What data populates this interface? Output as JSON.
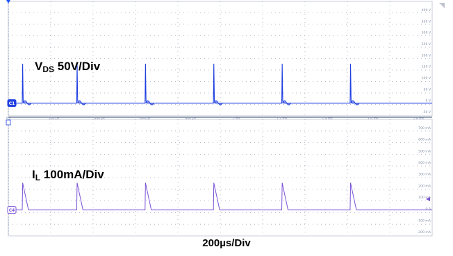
{
  "colors": {
    "ch1": "#1f3fe0",
    "ch4": "#7a52d6",
    "grid": "#a0a8b8",
    "divider": "#5a6b8c",
    "tick_text": "#8090a8",
    "marker_fill": "#2255ff"
  },
  "chart_data": [
    {
      "type": "line",
      "name": "drain-source-voltage",
      "label_main": "V",
      "label_sub": "DS",
      "label_rest": " 50V/Div",
      "channel_badge": "C1",
      "yticks": [
        "400 V",
        "350 V",
        "300 V",
        "250 V",
        "200 V",
        "150 V",
        "100 V",
        "50 V",
        "0 V",
        "-50 V"
      ],
      "ylim": [
        -50,
        400
      ],
      "ylim_unit": "V",
      "x": [
        0,
        200,
        400,
        600,
        800,
        1000,
        1200,
        1400,
        1600,
        1800
      ],
      "xticks": [
        "0 s",
        "200 µs",
        "400 µs",
        "600 µs",
        "800 µs",
        "1 ms",
        "1.2 ms",
        "1.4 ms",
        "1.6 ms",
        "1.8 ms"
      ],
      "xlim_us": [
        0,
        1860
      ],
      "baseline": 0,
      "pulse_times_us": [
        0,
        300,
        600,
        900,
        1200,
        1500
      ],
      "pulse_peak": 155
    },
    {
      "type": "line",
      "name": "inductor-current",
      "label_main": "I",
      "label_sub": "L",
      "label_rest": " 100mA/Div",
      "channel_badge": "C4",
      "yticks": [
        "700 mA",
        "600 mA",
        "500 mA",
        "400 mA",
        "300 mA",
        "200 mA",
        "100 mA",
        "0 A",
        "-100 mA",
        "-200 mA"
      ],
      "ylim": [
        -200,
        700
      ],
      "ylim_unit": "mA",
      "baseline": 0,
      "pulse_times_us": [
        0,
        300,
        600,
        900,
        1200,
        1500
      ],
      "pulse_peak": 210
    }
  ],
  "xscale_label": "200µs/Div"
}
